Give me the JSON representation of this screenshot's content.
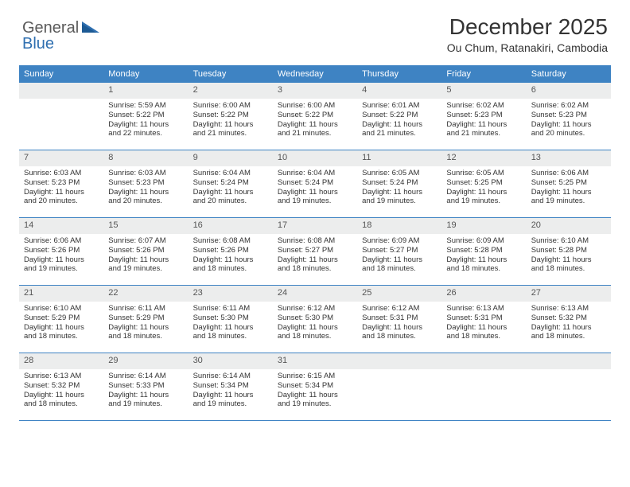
{
  "logo": {
    "part1": "General",
    "part2": "Blue"
  },
  "title": "December 2025",
  "subtitle": "Ou Chum, Ratanakiri, Cambodia",
  "colors": {
    "header_blue": "#3e83c3",
    "daynum_bg": "#eceded",
    "border_blue": "#3e83c3",
    "logo_gray": "#5a5a5a",
    "logo_blue": "#2f6fb0",
    "text": "#333333",
    "bg": "#ffffff"
  },
  "typography": {
    "title_fontsize": 28,
    "subtitle_fontsize": 14,
    "dayhead_fontsize": 11,
    "daynum_fontsize": 11,
    "cell_fontsize": 9.5
  },
  "days_of_week": [
    "Sunday",
    "Monday",
    "Tuesday",
    "Wednesday",
    "Thursday",
    "Friday",
    "Saturday"
  ],
  "weeks": [
    [
      null,
      {
        "n": "1",
        "sr": "5:59 AM",
        "ss": "5:22 PM",
        "dl": "11 hours and 22 minutes."
      },
      {
        "n": "2",
        "sr": "6:00 AM",
        "ss": "5:22 PM",
        "dl": "11 hours and 21 minutes."
      },
      {
        "n": "3",
        "sr": "6:00 AM",
        "ss": "5:22 PM",
        "dl": "11 hours and 21 minutes."
      },
      {
        "n": "4",
        "sr": "6:01 AM",
        "ss": "5:22 PM",
        "dl": "11 hours and 21 minutes."
      },
      {
        "n": "5",
        "sr": "6:02 AM",
        "ss": "5:23 PM",
        "dl": "11 hours and 21 minutes."
      },
      {
        "n": "6",
        "sr": "6:02 AM",
        "ss": "5:23 PM",
        "dl": "11 hours and 20 minutes."
      }
    ],
    [
      {
        "n": "7",
        "sr": "6:03 AM",
        "ss": "5:23 PM",
        "dl": "11 hours and 20 minutes."
      },
      {
        "n": "8",
        "sr": "6:03 AM",
        "ss": "5:23 PM",
        "dl": "11 hours and 20 minutes."
      },
      {
        "n": "9",
        "sr": "6:04 AM",
        "ss": "5:24 PM",
        "dl": "11 hours and 20 minutes."
      },
      {
        "n": "10",
        "sr": "6:04 AM",
        "ss": "5:24 PM",
        "dl": "11 hours and 19 minutes."
      },
      {
        "n": "11",
        "sr": "6:05 AM",
        "ss": "5:24 PM",
        "dl": "11 hours and 19 minutes."
      },
      {
        "n": "12",
        "sr": "6:05 AM",
        "ss": "5:25 PM",
        "dl": "11 hours and 19 minutes."
      },
      {
        "n": "13",
        "sr": "6:06 AM",
        "ss": "5:25 PM",
        "dl": "11 hours and 19 minutes."
      }
    ],
    [
      {
        "n": "14",
        "sr": "6:06 AM",
        "ss": "5:26 PM",
        "dl": "11 hours and 19 minutes."
      },
      {
        "n": "15",
        "sr": "6:07 AM",
        "ss": "5:26 PM",
        "dl": "11 hours and 19 minutes."
      },
      {
        "n": "16",
        "sr": "6:08 AM",
        "ss": "5:26 PM",
        "dl": "11 hours and 18 minutes."
      },
      {
        "n": "17",
        "sr": "6:08 AM",
        "ss": "5:27 PM",
        "dl": "11 hours and 18 minutes."
      },
      {
        "n": "18",
        "sr": "6:09 AM",
        "ss": "5:27 PM",
        "dl": "11 hours and 18 minutes."
      },
      {
        "n": "19",
        "sr": "6:09 AM",
        "ss": "5:28 PM",
        "dl": "11 hours and 18 minutes."
      },
      {
        "n": "20",
        "sr": "6:10 AM",
        "ss": "5:28 PM",
        "dl": "11 hours and 18 minutes."
      }
    ],
    [
      {
        "n": "21",
        "sr": "6:10 AM",
        "ss": "5:29 PM",
        "dl": "11 hours and 18 minutes."
      },
      {
        "n": "22",
        "sr": "6:11 AM",
        "ss": "5:29 PM",
        "dl": "11 hours and 18 minutes."
      },
      {
        "n": "23",
        "sr": "6:11 AM",
        "ss": "5:30 PM",
        "dl": "11 hours and 18 minutes."
      },
      {
        "n": "24",
        "sr": "6:12 AM",
        "ss": "5:30 PM",
        "dl": "11 hours and 18 minutes."
      },
      {
        "n": "25",
        "sr": "6:12 AM",
        "ss": "5:31 PM",
        "dl": "11 hours and 18 minutes."
      },
      {
        "n": "26",
        "sr": "6:13 AM",
        "ss": "5:31 PM",
        "dl": "11 hours and 18 minutes."
      },
      {
        "n": "27",
        "sr": "6:13 AM",
        "ss": "5:32 PM",
        "dl": "11 hours and 18 minutes."
      }
    ],
    [
      {
        "n": "28",
        "sr": "6:13 AM",
        "ss": "5:32 PM",
        "dl": "11 hours and 18 minutes."
      },
      {
        "n": "29",
        "sr": "6:14 AM",
        "ss": "5:33 PM",
        "dl": "11 hours and 19 minutes."
      },
      {
        "n": "30",
        "sr": "6:14 AM",
        "ss": "5:34 PM",
        "dl": "11 hours and 19 minutes."
      },
      {
        "n": "31",
        "sr": "6:15 AM",
        "ss": "5:34 PM",
        "dl": "11 hours and 19 minutes."
      },
      null,
      null,
      null
    ]
  ],
  "labels": {
    "sunrise": "Sunrise: ",
    "sunset": "Sunset: ",
    "daylight": "Daylight: "
  }
}
